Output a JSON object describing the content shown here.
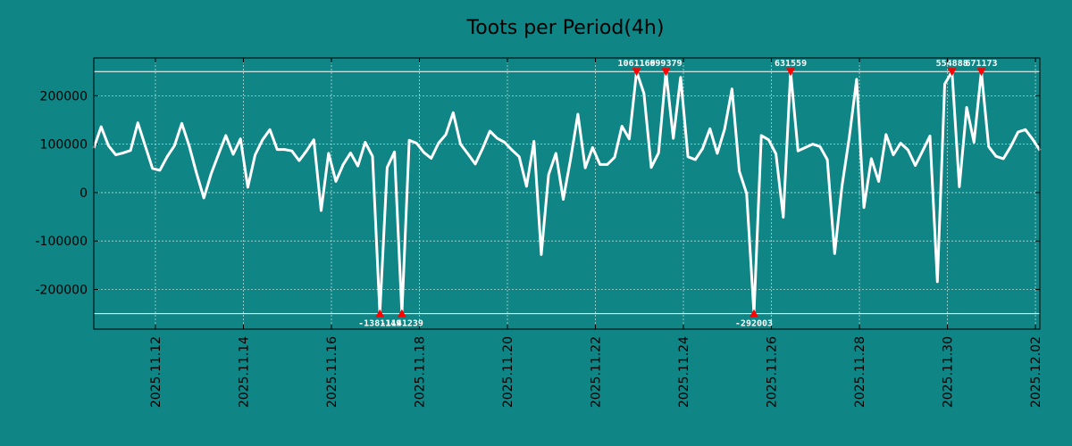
{
  "chart_data": {
    "type": "line",
    "title": "Toots per Period(4h)",
    "xlabel": "",
    "ylabel": "",
    "x_tick_labels": [
      "2025.11.12",
      "2025.11.14",
      "2025.11.16",
      "2025.11.18",
      "2025.11.20",
      "2025.11.22",
      "2025.11.24",
      "2025.11.26",
      "2025.11.28",
      "2025.11.30",
      "2025.12.02"
    ],
    "x_tick_days": [
      1.5,
      3.5,
      5.5,
      7.5,
      9.5,
      11.5,
      13.5,
      15.5,
      17.5,
      19.5,
      21.5
    ],
    "x_range_days": [
      0.1,
      21.6
    ],
    "y_tick_labels": [
      "200000",
      "100000",
      "0",
      "-100000",
      "-200000"
    ],
    "y_tick_values": [
      200000,
      100000,
      0,
      -100000,
      -200000
    ],
    "ylim": [
      -282000,
      278000
    ],
    "clip_lines": [
      250000,
      -250000
    ],
    "grid": true,
    "line_color": "#ffffff",
    "outlier_marker_color": "#ff0000",
    "series": [
      {
        "name": "toots",
        "x_step_days": 0.1667,
        "x_start_days": 0.1,
        "values": [
          92000,
          136000,
          97000,
          78000,
          82000,
          87000,
          144000,
          97000,
          50000,
          46000,
          74000,
          97000,
          143000,
          97000,
          40000,
          -11000,
          39000,
          79000,
          118000,
          79000,
          111000,
          11000,
          78000,
          109000,
          130000,
          89000,
          89000,
          86000,
          66000,
          86000,
          109000,
          -37000,
          81000,
          23000,
          58000,
          82000,
          55000,
          104000,
          75000,
          -250000,
          52000,
          84000,
          -250000,
          108000,
          102000,
          83000,
          71000,
          102000,
          120000,
          165000,
          100000,
          80000,
          59000,
          91000,
          127000,
          112000,
          104000,
          88000,
          74000,
          13000,
          106000,
          -128000,
          37000,
          81000,
          -14000,
          69000,
          162000,
          51000,
          93000,
          58000,
          58000,
          73000,
          137000,
          111000,
          250000,
          205000,
          52000,
          82000,
          250000,
          112000,
          238000,
          74000,
          68000,
          91000,
          132000,
          81000,
          131000,
          214000,
          44000,
          -2000,
          -250000,
          118000,
          109000,
          80000,
          -51000,
          250000,
          86000,
          93000,
          100000,
          95000,
          68000,
          -126000,
          13000,
          114000,
          234000,
          -31000,
          70000,
          23000,
          120000,
          78000,
          102000,
          88000,
          56000,
          86000,
          117000,
          -184000,
          224000,
          250000,
          12000,
          176000,
          104000,
          250000,
          95000,
          75000,
          70000,
          95000,
          125000,
          130000,
          110000,
          87000
        ]
      }
    ],
    "outliers": [
      {
        "label": "-1381149",
        "index": 39,
        "side": "bottom"
      },
      {
        "label": "-1141239",
        "index": 42,
        "side": "bottom"
      },
      {
        "label": "1061169",
        "index": 74,
        "side": "top"
      },
      {
        "label": "699379",
        "index": 78,
        "side": "top"
      },
      {
        "label": "-292003",
        "index": 90,
        "side": "bottom"
      },
      {
        "label": "631559",
        "index": 95,
        "side": "top"
      },
      {
        "label": "554888",
        "index": 117,
        "side": "top"
      },
      {
        "label": "671173",
        "index": 121,
        "side": "top"
      }
    ]
  }
}
